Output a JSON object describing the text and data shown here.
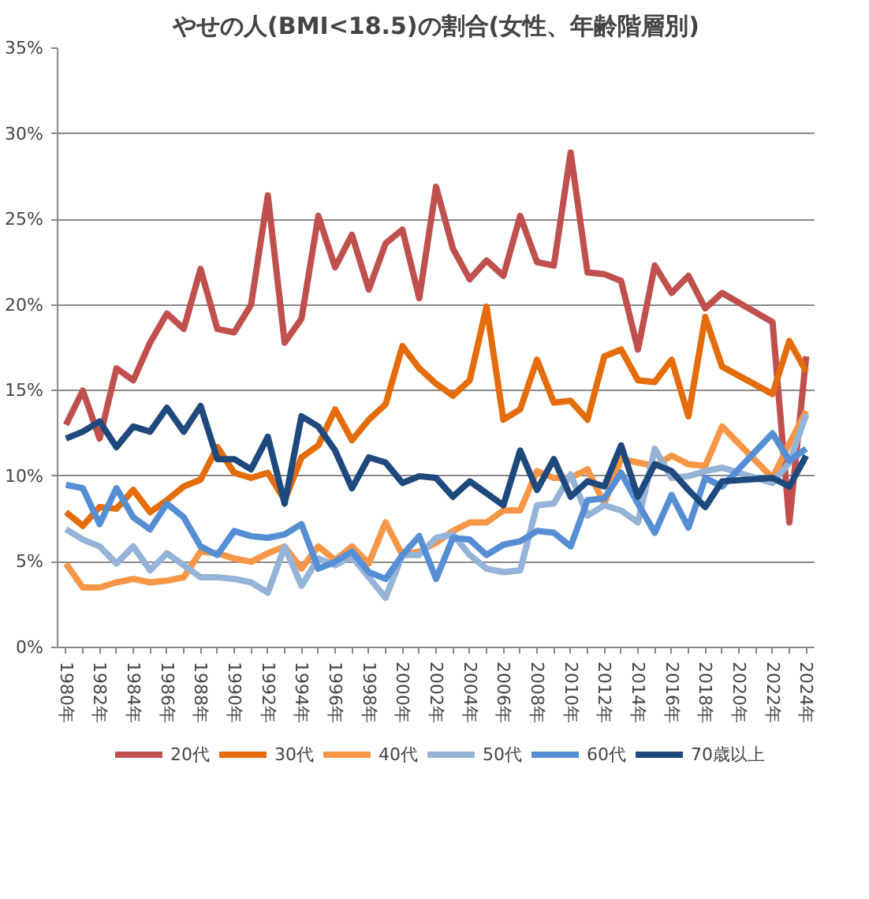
{
  "chart_data": {
    "type": "line",
    "title": "やせの人(BMI<18.5)の割合(女性、年齢階層別)",
    "x": [
      1980,
      1981,
      1982,
      1983,
      1984,
      1985,
      1986,
      1987,
      1988,
      1989,
      1990,
      1991,
      1992,
      1993,
      1994,
      1995,
      1996,
      1997,
      1998,
      1999,
      2000,
      2001,
      2002,
      2003,
      2004,
      2005,
      2006,
      2007,
      2008,
      2009,
      2010,
      2011,
      2012,
      2013,
      2014,
      2015,
      2016,
      2017,
      2018,
      2019,
      2022,
      2023,
      2024
    ],
    "series": [
      {
        "name": "20代",
        "color": "#c0504d",
        "values": [
          13.0,
          15.0,
          12.2,
          16.3,
          15.6,
          17.8,
          19.5,
          18.6,
          22.1,
          18.6,
          18.4,
          20.0,
          26.4,
          17.8,
          19.2,
          25.2,
          22.2,
          24.1,
          20.9,
          23.6,
          24.4,
          20.4,
          26.9,
          23.3,
          21.5,
          22.6,
          21.7,
          25.2,
          22.5,
          22.3,
          28.9,
          21.9,
          21.8,
          21.4,
          17.4,
          22.3,
          20.7,
          21.7,
          19.8,
          20.7,
          19.0,
          7.3,
          17.0
        ]
      },
      {
        "name": "30代",
        "color": "#e46c0a",
        "values": [
          7.9,
          7.1,
          8.2,
          8.1,
          9.2,
          7.9,
          8.6,
          9.4,
          9.8,
          11.7,
          10.2,
          9.9,
          10.2,
          8.6,
          11.1,
          11.8,
          13.9,
          12.1,
          13.3,
          14.2,
          17.6,
          16.3,
          15.4,
          14.7,
          15.6,
          19.9,
          13.3,
          13.9,
          16.8,
          14.3,
          14.4,
          13.3,
          17.0,
          17.4,
          15.6,
          15.5,
          16.8,
          13.5,
          19.3,
          16.4,
          14.8,
          17.9,
          16.1
        ]
      },
      {
        "name": "40代",
        "color": "#f79646",
        "values": [
          4.9,
          3.5,
          3.5,
          3.8,
          4.0,
          3.8,
          3.9,
          4.1,
          5.6,
          5.5,
          5.2,
          5.0,
          5.5,
          5.9,
          4.6,
          5.9,
          5.1,
          5.9,
          4.9,
          7.3,
          5.4,
          5.6,
          6.1,
          6.8,
          7.3,
          7.3,
          8.0,
          8.0,
          10.3,
          9.9,
          9.9,
          10.4,
          8.4,
          11.0,
          10.8,
          10.6,
          11.2,
          10.7,
          10.6,
          12.9,
          9.9,
          11.9,
          13.8
        ]
      },
      {
        "name": "50代",
        "color": "#95b3d7",
        "values": [
          6.9,
          6.3,
          5.9,
          4.9,
          5.9,
          4.5,
          5.5,
          4.8,
          4.1,
          4.1,
          4.0,
          3.8,
          3.2,
          5.9,
          3.6,
          5.2,
          4.8,
          5.3,
          4.1,
          2.9,
          5.4,
          5.4,
          6.4,
          6.6,
          5.4,
          4.6,
          4.4,
          4.5,
          8.3,
          8.4,
          10.1,
          7.7,
          8.3,
          8.0,
          7.3,
          11.6,
          9.9,
          10.0,
          10.3,
          10.5,
          9.6,
          10.8,
          13.6
        ]
      },
      {
        "name": "60代",
        "color": "#558ed5",
        "values": [
          9.5,
          9.3,
          7.2,
          9.3,
          7.6,
          6.9,
          8.4,
          7.6,
          5.9,
          5.4,
          6.8,
          6.5,
          6.4,
          6.6,
          7.2,
          4.6,
          5.0,
          5.6,
          4.4,
          4.0,
          5.4,
          6.5,
          4.0,
          6.4,
          6.3,
          5.4,
          6.0,
          6.2,
          6.8,
          6.7,
          5.9,
          8.6,
          8.7,
          10.2,
          8.4,
          6.7,
          8.9,
          7.0,
          9.9,
          9.4,
          12.5,
          10.9,
          11.6
        ]
      },
      {
        "name": "70歳以上",
        "color": "#1f497d",
        "values": [
          12.2,
          12.6,
          13.2,
          11.7,
          12.9,
          12.6,
          14.0,
          12.6,
          14.1,
          11.0,
          11.0,
          10.4,
          12.3,
          8.4,
          13.5,
          12.9,
          11.5,
          9.3,
          11.1,
          10.8,
          9.6,
          10.0,
          9.9,
          8.8,
          9.7,
          9.0,
          8.3,
          11.5,
          9.2,
          11.0,
          8.8,
          9.7,
          9.4,
          11.8,
          8.8,
          10.7,
          10.3,
          9.2,
          8.2,
          9.7,
          9.9,
          9.4,
          11.2
        ]
      }
    ],
    "xlim": [
      1979.5,
      2024.5
    ],
    "xticks": [
      {
        "value": 1980,
        "label": "1980年"
      },
      {
        "value": 1981,
        "label": null
      },
      {
        "value": 1982,
        "label": "1982年"
      },
      {
        "value": 1983,
        "label": null
      },
      {
        "value": 1984,
        "label": "1984年"
      },
      {
        "value": 1985,
        "label": null
      },
      {
        "value": 1986,
        "label": "1986年"
      },
      {
        "value": 1987,
        "label": null
      },
      {
        "value": 1988,
        "label": "1988年"
      },
      {
        "value": 1989,
        "label": null
      },
      {
        "value": 1990,
        "label": "1990年"
      },
      {
        "value": 1991,
        "label": null
      },
      {
        "value": 1992,
        "label": "1992年"
      },
      {
        "value": 1993,
        "label": null
      },
      {
        "value": 1994,
        "label": "1994年"
      },
      {
        "value": 1995,
        "label": null
      },
      {
        "value": 1996,
        "label": "1996年"
      },
      {
        "value": 1997,
        "label": null
      },
      {
        "value": 1998,
        "label": "1998年"
      },
      {
        "value": 1999,
        "label": null
      },
      {
        "value": 2000,
        "label": "2000年"
      },
      {
        "value": 2001,
        "label": null
      },
      {
        "value": 2002,
        "label": "2002年"
      },
      {
        "value": 2003,
        "label": null
      },
      {
        "value": 2004,
        "label": "2004年"
      },
      {
        "value": 2005,
        "label": null
      },
      {
        "value": 2006,
        "label": "2006年"
      },
      {
        "value": 2007,
        "label": null
      },
      {
        "value": 2008,
        "label": "2008年"
      },
      {
        "value": 2009,
        "label": null
      },
      {
        "value": 2010,
        "label": "2010年"
      },
      {
        "value": 2011,
        "label": null
      },
      {
        "value": 2012,
        "label": "2012年"
      },
      {
        "value": 2013,
        "label": null
      },
      {
        "value": 2014,
        "label": "2014年"
      },
      {
        "value": 2015,
        "label": null
      },
      {
        "value": 2016,
        "label": "2016年"
      },
      {
        "value": 2017,
        "label": null
      },
      {
        "value": 2018,
        "label": "2018年"
      },
      {
        "value": 2019,
        "label": null
      },
      {
        "value": 2020,
        "label": "2020年"
      },
      {
        "value": 2021,
        "label": null
      },
      {
        "value": 2022,
        "label": "2022年"
      },
      {
        "value": 2023,
        "label": null
      },
      {
        "value": 2024,
        "label": "2024年"
      }
    ],
    "ylim": [
      0,
      35
    ],
    "yticks": [
      {
        "value": 0,
        "label": "0%"
      },
      {
        "value": 5,
        "label": "5%"
      },
      {
        "value": 10,
        "label": "10%"
      },
      {
        "value": 15,
        "label": "15%"
      },
      {
        "value": 20,
        "label": "20%"
      },
      {
        "value": 25,
        "label": "25%"
      },
      {
        "value": 30,
        "label": "30%"
      },
      {
        "value": 35,
        "label": "35%"
      }
    ],
    "grid": "y",
    "legend": "bottom",
    "marker": "none",
    "line_style": "solid"
  }
}
